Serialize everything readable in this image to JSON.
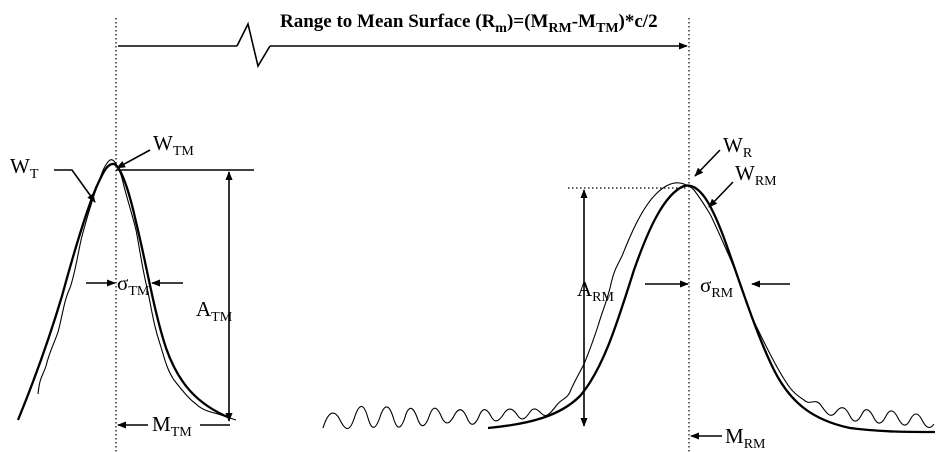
{
  "title": {
    "main": "Range to Mean Surface (R",
    "sub_m": "m",
    "mid": ")=(M",
    "sub_rm": "RM",
    "dash": "-M",
    "sub_tm": "TM",
    "tail": ")*c/2"
  },
  "labels": {
    "wt": {
      "base": "W",
      "sub": "T"
    },
    "wtm": {
      "base": "W",
      "sub": "TM"
    },
    "sigma_tm": {
      "base": "σ",
      "sub": "TM"
    },
    "atm": {
      "base": "A",
      "sub": "TM"
    },
    "mtm": {
      "base": "M",
      "sub": "TM"
    },
    "wr": {
      "base": "W",
      "sub": "R"
    },
    "wrm": {
      "base": "W",
      "sub": "RM"
    },
    "arm": {
      "base": "A",
      "sub": "RM"
    },
    "sigma_rm": {
      "base": "σ",
      "sub": "RM"
    },
    "mrm": {
      "base": "M",
      "sub": "RM"
    }
  },
  "colors": {
    "ink": "#000000",
    "background": "#ffffff"
  }
}
